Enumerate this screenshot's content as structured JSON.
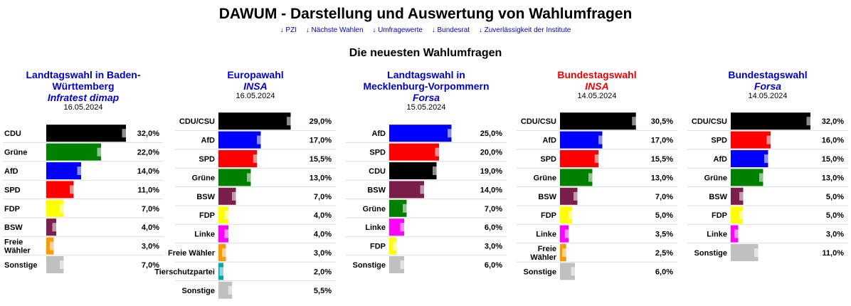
{
  "header": {
    "title": "DAWUM - Darstellung und Auswertung von Wahlumfragen",
    "nav": [
      "↓ PZI",
      "↓ Nächste Wahlen",
      "↓ Umfragewerte",
      "↓ Bundesrat",
      "↓ Zuverlässigkeit der Institute"
    ]
  },
  "section_title": "Die neuesten Wahlumfragen",
  "colors": {
    "CDU": "#000000",
    "CDU/CSU": "#000000",
    "AfD": "#0000ff",
    "SPD": "#ff0000",
    "Grüne": "#008000",
    "BSW": "#7a1e4b",
    "FDP": "#ffff00",
    "Linke": "#ff00ff",
    "Freie Wähler": "#ff9900",
    "Tierschutzpartei": "#00aaaa",
    "Sonstige": "#c0c0c0",
    "link_blue": "#0000cc",
    "link_red": "#ee0000"
  },
  "chart_data": [
    {
      "type": "bar",
      "title": "Landtagswahl in Baden-Württemberg",
      "title_lines": [
        "Landtagswahl in Baden-",
        "Württemberg"
      ],
      "institute": "Infratest dimap",
      "date": "16.05.2024",
      "title_color": "blue",
      "categories": [
        "CDU",
        "Grüne",
        "AfD",
        "SPD",
        "FDP",
        "BSW",
        "Freie Wähler",
        "Sonstige"
      ],
      "label_lines": [
        [
          "CDU"
        ],
        [
          "Grüne"
        ],
        [
          "AfD"
        ],
        [
          "SPD"
        ],
        [
          "FDP"
        ],
        [
          "BSW"
        ],
        [
          "Freie",
          "Wähler"
        ],
        [
          "Sonstige"
        ]
      ],
      "values": [
        32.0,
        22.0,
        14.0,
        11.0,
        7.0,
        4.0,
        3.0,
        7.0
      ],
      "value_labels": [
        "32,0%",
        "22,0%",
        "14,0%",
        "11,0%",
        "7,0%",
        "4,0%",
        "3,0%",
        "7,0%"
      ],
      "label_align": "left"
    },
    {
      "type": "bar",
      "title": "Europawahl",
      "title_lines": [
        "Europawahl"
      ],
      "institute": "INSA",
      "date": "16.05.2024",
      "title_color": "blue",
      "categories": [
        "CDU/CSU",
        "AfD",
        "SPD",
        "Grüne",
        "BSW",
        "FDP",
        "Linke",
        "Freie Wähler",
        "Tierschutzpartei",
        "Sonstige"
      ],
      "label_lines": [
        [
          "CDU/CSU"
        ],
        [
          "AfD"
        ],
        [
          "SPD"
        ],
        [
          "Grüne"
        ],
        [
          "BSW"
        ],
        [
          "FDP"
        ],
        [
          "Linke"
        ],
        [
          "Freie Wähler"
        ],
        [
          "Tierschutzpartei"
        ],
        [
          "Sonstige"
        ]
      ],
      "values": [
        29.0,
        17.0,
        15.5,
        13.0,
        7.0,
        4.0,
        4.0,
        3.0,
        2.0,
        5.5
      ],
      "value_labels": [
        "29,0%",
        "17,0%",
        "15,5%",
        "13,0%",
        "7,0%",
        "4,0%",
        "4,0%",
        "3,0%",
        "2,0%",
        "5,5%"
      ],
      "label_align": "right"
    },
    {
      "type": "bar",
      "title": "Landtagswahl in Mecklenburg-Vorpommern",
      "title_lines": [
        "Landtagswahl in",
        "Mecklenburg-Vorpommern"
      ],
      "institute": "Forsa",
      "date": "15.05.2024",
      "title_color": "blue",
      "categories": [
        "AfD",
        "SPD",
        "CDU",
        "BSW",
        "Grüne",
        "Linke",
        "FDP",
        "Sonstige"
      ],
      "label_lines": [
        [
          "AfD"
        ],
        [
          "SPD"
        ],
        [
          "CDU"
        ],
        [
          "BSW"
        ],
        [
          "Grüne"
        ],
        [
          "Linke"
        ],
        [
          "FDP"
        ],
        [
          "Sonstige"
        ]
      ],
      "values": [
        25.0,
        20.0,
        19.0,
        14.0,
        7.0,
        6.0,
        3.0,
        6.0
      ],
      "value_labels": [
        "25,0%",
        "20,0%",
        "19,0%",
        "14,0%",
        "7,0%",
        "6,0%",
        "3,0%",
        "6,0%"
      ],
      "label_align": "right"
    },
    {
      "type": "bar",
      "title": "Bundestagswahl",
      "title_lines": [
        "Bundestagswahl"
      ],
      "institute": "INSA",
      "date": "14.05.2024",
      "title_color": "red",
      "categories": [
        "CDU/CSU",
        "AfD",
        "SPD",
        "Grüne",
        "BSW",
        "FDP",
        "Linke",
        "Freie Wähler",
        "Sonstige"
      ],
      "label_lines": [
        [
          "CDU/CSU"
        ],
        [
          "AfD"
        ],
        [
          "SPD"
        ],
        [
          "Grüne"
        ],
        [
          "BSW"
        ],
        [
          "FDP"
        ],
        [
          "Linke"
        ],
        [
          "Freie",
          "Wähler"
        ],
        [
          "Sonstige"
        ]
      ],
      "values": [
        30.5,
        17.0,
        15.5,
        13.0,
        7.0,
        5.0,
        3.5,
        2.5,
        6.0
      ],
      "value_labels": [
        "30,5%",
        "17,0%",
        "15,5%",
        "13,0%",
        "7,0%",
        "5,0%",
        "3,5%",
        "2,5%",
        "6,0%"
      ],
      "label_align": "right"
    },
    {
      "type": "bar",
      "title": "Bundestagswahl",
      "title_lines": [
        "Bundestagswahl"
      ],
      "institute": "Forsa",
      "date": "14.05.2024",
      "title_color": "blue",
      "categories": [
        "CDU/CSU",
        "SPD",
        "AfD",
        "Grüne",
        "BSW",
        "FDP",
        "Linke",
        "Sonstige"
      ],
      "label_lines": [
        [
          "CDU/CSU"
        ],
        [
          "SPD"
        ],
        [
          "AfD"
        ],
        [
          "Grüne"
        ],
        [
          "BSW"
        ],
        [
          "FDP"
        ],
        [
          "Linke"
        ],
        [
          "Sonstige"
        ]
      ],
      "values": [
        32.0,
        16.0,
        15.0,
        13.0,
        5.0,
        5.0,
        3.0,
        11.0
      ],
      "value_labels": [
        "32,0%",
        "16,0%",
        "15,0%",
        "13,0%",
        "5,0%",
        "5,0%",
        "3,0%",
        "11,0%"
      ],
      "label_align": "right"
    }
  ]
}
